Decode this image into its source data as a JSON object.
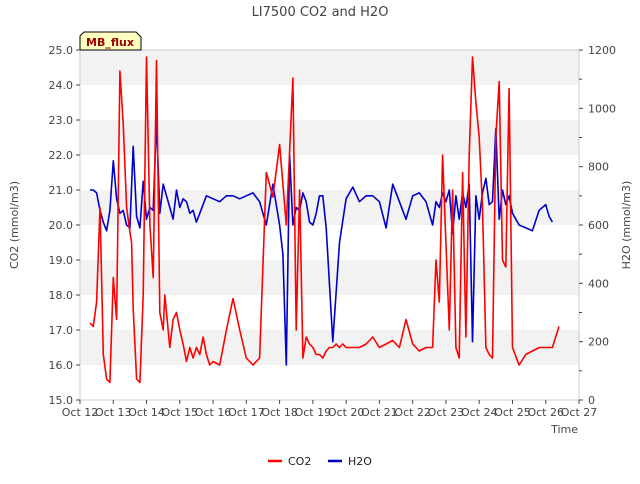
{
  "chart_data": {
    "type": "line",
    "title": "LI7500 CO2 and H2O",
    "badge": "MB_flux",
    "xlabel": "Time",
    "ylabel_left": "CO2 (mmol/m3)",
    "ylabel_right": "H2O (mmol/m3)",
    "x_ticks": [
      "Oct 12",
      "Oct 13",
      "Oct 14",
      "Oct 15",
      "Oct 16",
      "Oct 17",
      "Oct 18",
      "Oct 19",
      "Oct 20",
      "Oct 21",
      "Oct 22",
      "Oct 23",
      "Oct 24",
      "Oct 25",
      "Oct 26",
      "Oct 27"
    ],
    "xlim": [
      0,
      15
    ],
    "ylim_left": [
      15.0,
      25.0
    ],
    "y_ticks_left": [
      "15.0",
      "16.0",
      "17.0",
      "18.0",
      "19.0",
      "20.0",
      "21.0",
      "22.0",
      "23.0",
      "24.0",
      "25.0"
    ],
    "ylim_right": [
      0,
      1200
    ],
    "y_ticks_right": [
      "0",
      "200",
      "400",
      "600",
      "800",
      "1000",
      "1200"
    ],
    "grid": "horizontal bands",
    "legend_position": "bottom-center",
    "series": [
      {
        "name": "CO2",
        "axis": "left",
        "color": "#ff0000",
        "x": [
          0.3,
          0.4,
          0.5,
          0.6,
          0.7,
          0.8,
          0.9,
          1.0,
          1.1,
          1.2,
          1.3,
          1.4,
          1.5,
          1.55,
          1.6,
          1.7,
          1.8,
          1.9,
          2.0,
          2.1,
          2.2,
          2.3,
          2.4,
          2.5,
          2.55,
          2.6,
          2.7,
          2.8,
          2.9,
          3.0,
          3.1,
          3.2,
          3.3,
          3.4,
          3.5,
          3.6,
          3.7,
          3.8,
          3.9,
          4.0,
          4.2,
          4.4,
          4.6,
          4.8,
          5.0,
          5.2,
          5.4,
          5.6,
          5.8,
          6.0,
          6.2,
          6.4,
          6.5,
          6.6,
          6.7,
          6.8,
          6.9,
          7.0,
          7.1,
          7.2,
          7.3,
          7.4,
          7.5,
          7.6,
          7.7,
          7.8,
          7.9,
          8.0,
          8.2,
          8.4,
          8.6,
          8.8,
          9.0,
          9.2,
          9.4,
          9.6,
          9.8,
          10.0,
          10.2,
          10.4,
          10.6,
          10.7,
          10.8,
          10.9,
          11.0,
          11.1,
          11.2,
          11.3,
          11.4,
          11.5,
          11.6,
          11.7,
          11.8,
          11.9,
          12.0,
          12.1,
          12.2,
          12.3,
          12.4,
          12.5,
          12.6,
          12.7,
          12.8,
          12.9,
          13.0,
          13.2,
          13.4,
          13.6,
          13.8,
          14.0,
          14.2,
          14.4
        ],
        "values": [
          17.2,
          17.1,
          17.8,
          20.5,
          16.3,
          15.6,
          15.5,
          18.5,
          17.3,
          24.4,
          22.9,
          20.5,
          19.8,
          19.5,
          17.6,
          15.6,
          15.5,
          18.0,
          24.8,
          20.0,
          18.5,
          24.7,
          17.5,
          17.0,
          18.0,
          17.5,
          16.5,
          17.3,
          17.5,
          17.0,
          16.6,
          16.1,
          16.5,
          16.2,
          16.5,
          16.3,
          16.8,
          16.3,
          16.0,
          16.1,
          16.0,
          17.0,
          17.9,
          17.0,
          16.2,
          16.0,
          16.2,
          21.5,
          20.8,
          22.3,
          20.0,
          24.2,
          17.0,
          21.0,
          16.2,
          16.8,
          16.6,
          16.5,
          16.3,
          16.3,
          16.2,
          16.4,
          16.5,
          16.5,
          16.6,
          16.5,
          16.6,
          16.5,
          16.5,
          16.5,
          16.6,
          16.8,
          16.5,
          16.6,
          16.7,
          16.5,
          17.3,
          16.6,
          16.4,
          16.5,
          16.5,
          19.0,
          17.8,
          22.0,
          19.5,
          17.0,
          21.0,
          16.5,
          16.2,
          21.5,
          16.8,
          22.0,
          24.8,
          23.5,
          22.5,
          20.5,
          16.5,
          16.3,
          16.2,
          22.5,
          24.1,
          19.0,
          18.8,
          23.9,
          16.5,
          16.0,
          16.3,
          16.4,
          16.5,
          16.5,
          16.5,
          17.1
        ]
      },
      {
        "name": "H2O",
        "axis": "right",
        "color": "#0000cc",
        "x": [
          0.3,
          0.4,
          0.5,
          0.6,
          0.7,
          0.8,
          0.9,
          1.0,
          1.1,
          1.2,
          1.3,
          1.4,
          1.5,
          1.6,
          1.7,
          1.8,
          1.9,
          2.0,
          2.1,
          2.2,
          2.3,
          2.4,
          2.5,
          2.6,
          2.7,
          2.8,
          2.9,
          3.0,
          3.1,
          3.2,
          3.3,
          3.4,
          3.5,
          3.6,
          3.8,
          4.0,
          4.2,
          4.4,
          4.6,
          4.8,
          5.0,
          5.2,
          5.4,
          5.6,
          5.8,
          6.0,
          6.1,
          6.2,
          6.3,
          6.4,
          6.5,
          6.6,
          6.7,
          6.8,
          6.9,
          7.0,
          7.1,
          7.2,
          7.3,
          7.4,
          7.6,
          7.8,
          8.0,
          8.2,
          8.4,
          8.6,
          8.8,
          9.0,
          9.2,
          9.4,
          9.6,
          9.8,
          10.0,
          10.2,
          10.4,
          10.6,
          10.7,
          10.8,
          10.9,
          11.0,
          11.1,
          11.2,
          11.3,
          11.4,
          11.5,
          11.6,
          11.7,
          11.8,
          11.9,
          12.0,
          12.1,
          12.2,
          12.3,
          12.4,
          12.5,
          12.6,
          12.7,
          12.8,
          12.9,
          13.0,
          13.2,
          13.4,
          13.6,
          13.8,
          14.0,
          14.1,
          14.2
        ],
        "values": [
          720,
          720,
          710,
          650,
          610,
          580,
          650,
          820,
          690,
          640,
          650,
          600,
          590,
          870,
          630,
          590,
          750,
          620,
          660,
          650,
          960,
          640,
          740,
          700,
          660,
          620,
          720,
          660,
          690,
          680,
          640,
          650,
          610,
          640,
          700,
          690,
          680,
          700,
          700,
          690,
          700,
          710,
          680,
          600,
          740,
          600,
          500,
          120,
          840,
          600,
          660,
          650,
          710,
          680,
          610,
          600,
          640,
          700,
          700,
          590,
          200,
          540,
          690,
          730,
          680,
          700,
          700,
          680,
          590,
          740,
          680,
          620,
          700,
          710,
          680,
          600,
          680,
          660,
          710,
          680,
          720,
          570,
          700,
          620,
          710,
          660,
          740,
          200,
          700,
          620,
          710,
          760,
          670,
          680,
          930,
          620,
          720,
          670,
          700,
          640,
          600,
          590,
          580,
          650,
          670,
          630,
          610
        ]
      }
    ]
  }
}
